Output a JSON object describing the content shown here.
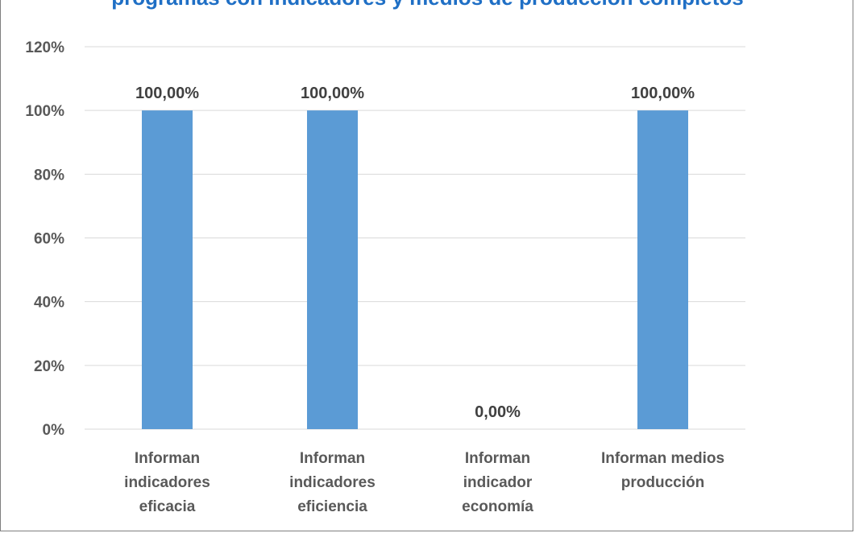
{
  "chart_data": {
    "type": "bar",
    "title": "",
    "title_partial_visible": "programas con indicadores y medios de producción completos",
    "categories": [
      [
        "Informan",
        "indicadores",
        "eficacia"
      ],
      [
        "Informan",
        "indicadores",
        "eficiencia"
      ],
      [
        "Informan",
        "indicador",
        "economía"
      ],
      [
        "Informan medios",
        "producción"
      ]
    ],
    "values": [
      100,
      100,
      0,
      100
    ],
    "data_labels": [
      "100,00%",
      "100,00%",
      "0,00%",
      "100,00%"
    ],
    "yticks": [
      "0%",
      "20%",
      "40%",
      "60%",
      "80%",
      "100%",
      "120%"
    ],
    "ylim": [
      0,
      120
    ],
    "grid": true,
    "xlabel": "",
    "ylabel": "",
    "colors": {
      "bar": "#5b9bd5",
      "grid": "#d9d9d9",
      "title": "#1f6fc5"
    }
  }
}
